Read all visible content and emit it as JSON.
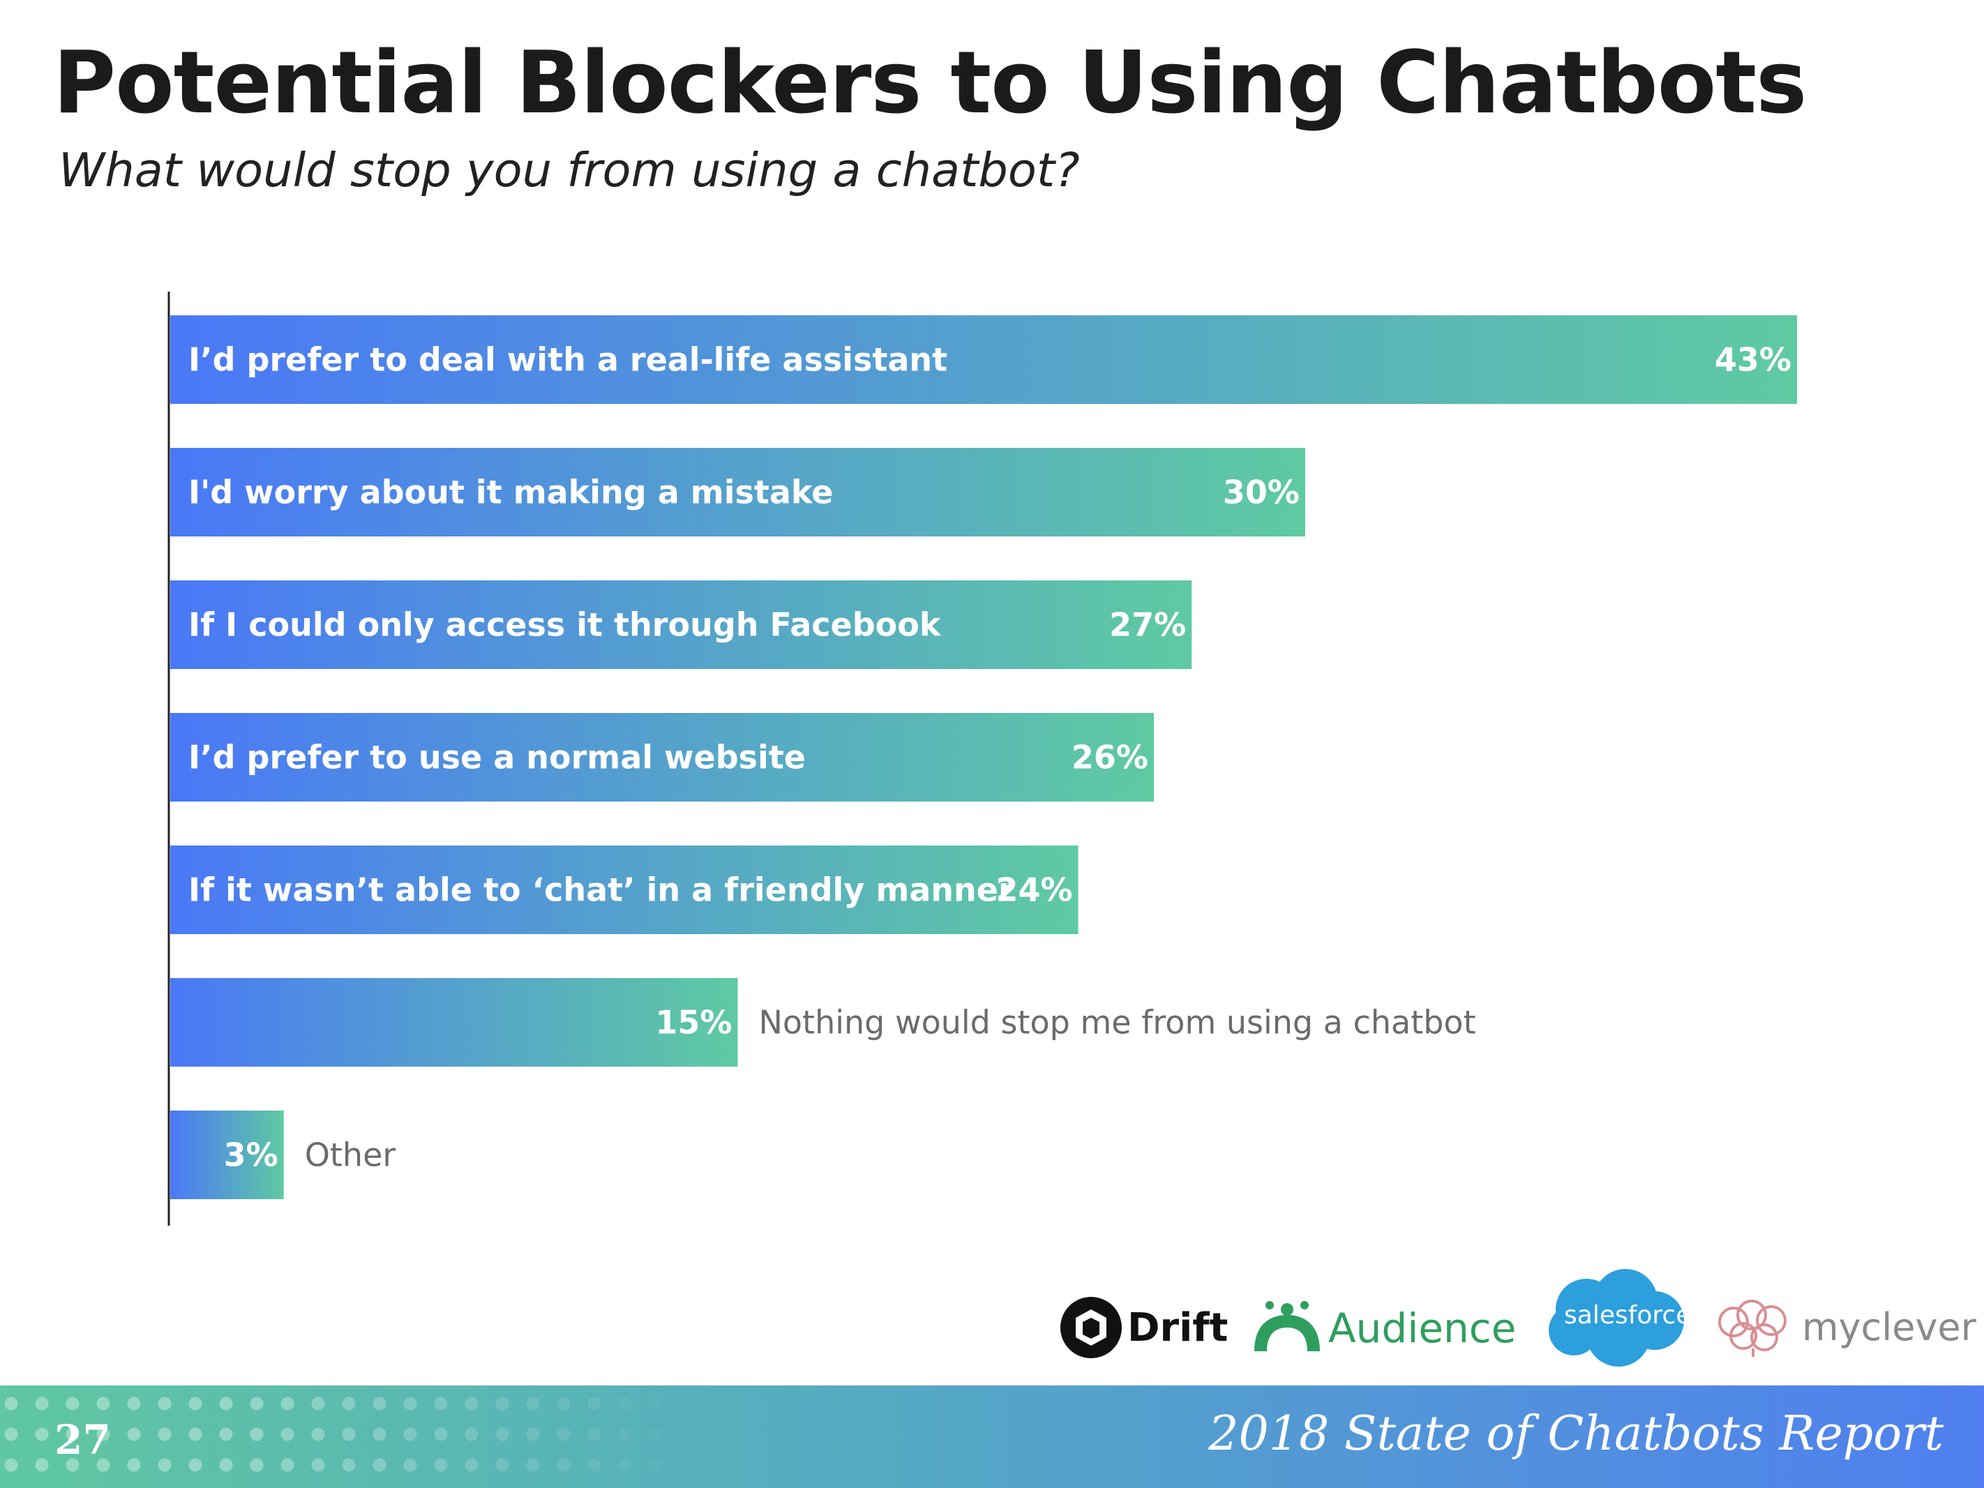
{
  "header": {
    "title": "Potential Blockers to Using Chatbots",
    "subtitle": "What would stop you from using a chatbot?"
  },
  "chart_data": {
    "type": "bar",
    "orientation": "horizontal",
    "categories": [
      "I’d prefer to deal with a real-life assistant",
      "I'd worry about it making a mistake",
      "If I could only access it through Facebook",
      "I’d prefer to use a normal website",
      "If it wasn’t able to ‘chat’ in a friendly manner",
      "Nothing would stop me from using a chatbot",
      "Other"
    ],
    "values": [
      43,
      30,
      27,
      26,
      24,
      15,
      3
    ],
    "value_labels": [
      "43%",
      "30%",
      "27%",
      "26%",
      "24%",
      "15%",
      "3%"
    ],
    "label_inside": [
      true,
      true,
      true,
      true,
      true,
      false,
      false
    ],
    "unit": "%",
    "xlim": [
      0,
      43
    ],
    "grid": false,
    "gradient": [
      "#4a78f7",
      "#5fcaa2"
    ]
  },
  "logos": {
    "drift": "Drift",
    "audience": "Audience",
    "salesforce": "salesforce",
    "myclever": "myclever"
  },
  "footer": {
    "page_number": "27",
    "report_title": "2018 State of Chatbots Report"
  }
}
